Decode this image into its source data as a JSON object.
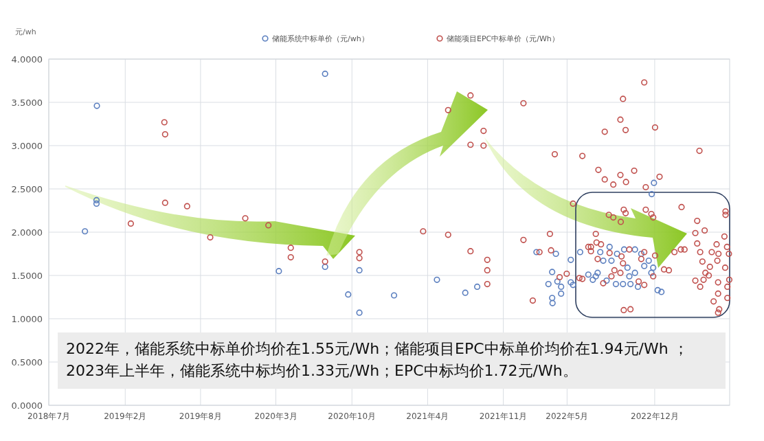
{
  "chart_data": {
    "type": "scatter",
    "ylabel": "元/wh",
    "legend": "top",
    "marker": "circle",
    "grid": true,
    "xlim": [
      "2018-07-15",
      "2023-07-15"
    ],
    "ylim": [
      0,
      4
    ],
    "xticks": [
      {
        "value": "2018-07-15",
        "label": "2018年7月"
      },
      {
        "value": "2019-02-05",
        "label": "2019年2月"
      },
      {
        "value": "2019-08-26",
        "label": "2019年8月"
      },
      {
        "value": "2020-03-15",
        "label": "2020年3月"
      },
      {
        "value": "2020-10-05",
        "label": "2020年10月"
      },
      {
        "value": "2021-04-26",
        "label": "2021年4月"
      },
      {
        "value": "2021-11-15",
        "label": "2021年11月"
      },
      {
        "value": "2022-05-05",
        "label": "2022年5月"
      },
      {
        "value": "2022-12-26",
        "label": "2022年12月"
      }
    ],
    "yticks": [
      {
        "value": 0,
        "label": "0.0000"
      },
      {
        "value": 0.5,
        "label": "0.5000"
      },
      {
        "value": 1,
        "label": "1.0000"
      },
      {
        "value": 1.5,
        "label": "1.5000"
      },
      {
        "value": 2,
        "label": "2.0000"
      },
      {
        "value": 2.5,
        "label": "2.5000"
      },
      {
        "value": 3,
        "label": "3.0000"
      },
      {
        "value": 3.5,
        "label": "3.5000"
      },
      {
        "value": 4,
        "label": "4.0000"
      }
    ],
    "annotations": [
      "2022年，储能系统中标单价均价在1.55元/Wh；储能项目EPC中标单价均价在1.94元/Wh ；2023年上半年，储能系统中标均价1.33元/Wh；EPC中标均价1.72元/Wh。"
    ],
    "series": [
      {
        "name": "储能系统中标单价（元/wh）",
        "color": "#5b7fbf",
        "x": [
          "2018-11-21",
          "2020-07-25",
          "2018-11-20",
          "2018-11-20",
          "2018-10-20",
          "2020-03-23",
          "2020-07-25",
          "2020-10-25",
          "2020-09-25",
          "2020-10-25",
          "2021-01-26",
          "2021-05-21",
          "2021-08-05",
          "2021-09-06",
          "2022-02-12",
          "2022-04-05",
          "2022-03-26",
          "2022-03-16",
          "2022-04-09",
          "2022-04-19",
          "2022-04-19",
          "2022-03-26",
          "2022-03-27",
          "2022-05-15",
          "2022-06-09",
          "2022-05-15",
          "2022-05-21",
          "2022-07-01",
          "2022-07-13",
          "2022-07-21",
          "2022-08-02",
          "2022-08-10",
          "2022-08-19",
          "2022-08-27",
          "2022-09-01",
          "2022-09-13",
          "2022-09-16",
          "2022-10-05",
          "2022-10-14",
          "2022-10-19",
          "2022-10-22",
          "2022-11-03",
          "2022-11-11",
          "2022-11-20",
          "2022-11-28",
          "2022-12-10",
          "2022-12-17",
          "2022-12-22",
          "2023-01-03",
          "2022-11-03",
          "2022-10-02",
          "2022-07-26",
          "2022-12-24",
          "2022-12-18",
          "2023-01-13"
        ],
        "values": [
          3.46,
          3.83,
          2.37,
          2.33,
          2.01,
          1.55,
          1.6,
          1.56,
          1.28,
          1.07,
          1.27,
          1.45,
          1.3,
          1.37,
          1.77,
          1.75,
          1.54,
          1.4,
          1.43,
          1.37,
          1.29,
          1.24,
          1.18,
          1.68,
          1.77,
          1.42,
          1.39,
          1.51,
          1.45,
          1.49,
          1.77,
          1.67,
          1.44,
          1.83,
          1.67,
          1.4,
          1.75,
          1.8,
          1.59,
          1.49,
          1.4,
          1.53,
          1.37,
          1.75,
          1.61,
          1.67,
          1.53,
          1.59,
          1.33,
          1.8,
          1.4,
          1.53,
          2.57,
          2.44,
          1.31
        ]
      },
      {
        "name": "储能项目EPC中标单价（元/Wh）",
        "color": "#c0504d",
        "x": [
          "2019-05-21",
          "2019-05-23",
          "2019-05-23",
          "2019-07-21",
          "2019-02-20",
          "2019-12-24",
          "2020-02-24",
          "2019-09-21",
          "2020-04-24",
          "2020-04-24",
          "2020-07-25",
          "2020-10-25",
          "2020-10-25",
          "2021-08-19",
          "2021-06-20",
          "2021-09-23",
          "2021-08-19",
          "2021-09-23",
          "2022-01-08",
          "2022-11-28",
          "2022-10-02",
          "2022-09-25",
          "2022-10-09",
          "2022-08-14",
          "2022-12-27",
          "2023-04-25",
          "2022-04-02",
          "2022-06-15",
          "2022-07-28",
          "2022-11-01",
          "2022-09-25",
          "2023-01-08",
          "2022-08-14",
          "2022-09-06",
          "2022-10-10",
          "2022-12-02",
          "2023-03-08",
          "2022-05-21",
          "2021-04-14",
          "2021-06-20",
          "2022-09-06",
          "2022-10-09",
          "2022-12-17",
          "2023-07-04",
          "2021-08-19",
          "2021-10-03",
          "2021-10-03",
          "2021-10-03",
          "2022-01-08",
          "2022-03-20",
          "2022-03-23",
          "2022-02-02",
          "2022-05-04",
          "2022-04-15",
          "2022-06-15",
          "2022-07-08",
          "2022-07-08",
          "2022-08-04",
          "2022-10-04",
          "2022-10-22",
          "2022-02-20",
          "2023-04-19",
          "2023-07-04",
          "2023-05-09",
          "2023-04-14",
          "2023-07-01",
          "2023-04-19",
          "2023-06-10",
          "2023-07-08",
          "2023-04-27",
          "2023-05-28",
          "2023-06-15",
          "2023-07-13",
          "2023-06-12",
          "2023-05-03",
          "2023-05-23",
          "2023-07-03",
          "2023-05-11",
          "2023-05-20",
          "2023-05-06",
          "2023-04-14",
          "2023-07-14",
          "2023-06-14",
          "2023-04-27",
          "2023-07-09",
          "2023-06-14",
          "2023-07-09",
          "2023-06-02",
          "2023-06-17",
          "2023-06-14",
          "2023-03-16",
          "2023-02-02",
          "2022-08-25",
          "2022-10-04",
          "2022-12-02",
          "2022-12-22",
          "2022-09-26",
          "2022-07-21",
          "2022-07-23",
          "2022-07-01",
          "2022-08-27",
          "2022-09-28",
          "2022-10-02",
          "2022-07-26",
          "2022-09-09",
          "2022-09-25",
          "2022-09-01",
          "2022-06-07",
          "2022-11-20",
          "2022-11-28",
          "2022-12-27",
          "2023-01-20",
          "2023-02-17",
          "2023-03-06",
          "2022-11-13",
          "2022-10-19",
          "2022-08-10",
          "2022-11-28",
          "2022-12-22"
        ],
        "values": [
          3.27,
          3.13,
          2.34,
          2.3,
          2.1,
          2.16,
          2.08,
          1.94,
          1.82,
          1.71,
          1.66,
          1.77,
          1.7,
          3.58,
          3.41,
          3.17,
          3.01,
          3.0,
          3.49,
          3.73,
          3.54,
          3.3,
          3.18,
          3.16,
          3.21,
          2.94,
          2.9,
          2.88,
          2.72,
          2.71,
          2.66,
          2.64,
          2.61,
          2.55,
          2.58,
          2.52,
          2.29,
          2.33,
          2.01,
          1.97,
          2.17,
          2.22,
          2.21,
          2.2,
          1.78,
          1.68,
          1.56,
          1.4,
          1.91,
          1.98,
          1.79,
          1.21,
          1.52,
          1.48,
          1.46,
          1.83,
          1.78,
          1.86,
          1.1,
          1.11,
          1.77,
          2.13,
          2.24,
          2.02,
          1.99,
          1.95,
          1.87,
          1.86,
          1.83,
          1.77,
          1.77,
          1.75,
          1.75,
          1.67,
          1.66,
          1.6,
          1.59,
          1.53,
          1.5,
          1.45,
          1.44,
          1.45,
          1.42,
          1.37,
          1.37,
          1.29,
          1.24,
          1.2,
          1.11,
          1.07,
          1.8,
          1.56,
          2.2,
          2.26,
          2.26,
          2.17,
          2.12,
          1.98,
          1.88,
          1.83,
          1.76,
          1.72,
          1.64,
          1.69,
          1.56,
          1.53,
          1.49,
          1.47,
          1.69,
          1.77,
          1.73,
          1.57,
          1.77,
          1.8,
          1.43,
          1.8,
          1.41,
          1.39,
          1.49
        ]
      }
    ]
  }
}
